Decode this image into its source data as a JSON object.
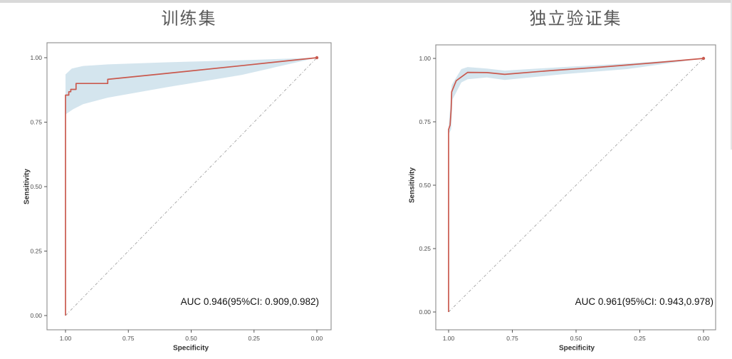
{
  "page": {
    "background": "#ffffff",
    "top_strip_color": "#d9d9d9",
    "right_strip_color": "#e4e4e4"
  },
  "colors": {
    "roc_curve": "#c9594e",
    "ci_band": "#cfe2ec",
    "diagonal": "#a3a3a3",
    "panel_border": "#8c8c8c",
    "tick_mark": "#555555",
    "tick_label": "#4d4d4d",
    "axis_label": "#303030",
    "title": "#595959",
    "auc_text": "#111111"
  },
  "chart_data": [
    {
      "type": "line",
      "chart_kind": "roc-curve",
      "title": "训练集",
      "xlabel": "Specificity",
      "ylabel": "Sensitivity",
      "x_reversed": true,
      "xlim": [
        1.0,
        0.0
      ],
      "ylim": [
        0.0,
        1.0
      ],
      "grid": false,
      "legend": false,
      "diagonal_reference": true,
      "xticks": [
        {
          "v": 1.0,
          "label": "1.00"
        },
        {
          "v": 0.75,
          "label": "0.75"
        },
        {
          "v": 0.5,
          "label": "0.50"
        },
        {
          "v": 0.25,
          "label": "0.25"
        },
        {
          "v": 0.0,
          "label": "0.00"
        }
      ],
      "yticks": [
        {
          "v": 0.0,
          "label": "0.00"
        },
        {
          "v": 0.25,
          "label": "0.25"
        },
        {
          "v": 0.5,
          "label": "0.50"
        },
        {
          "v": 0.75,
          "label": "0.75"
        },
        {
          "v": 1.0,
          "label": "1.00"
        }
      ],
      "auc": 0.946,
      "ci95": [
        0.909,
        0.982
      ],
      "auc_label": "AUC 0.946(95%CI: 0.909,0.982)",
      "series": [
        {
          "name": "ROC curve (specificity, sensitivity)",
          "points": [
            [
              1.0,
              0.0
            ],
            [
              1.0,
              0.855
            ],
            [
              0.987,
              0.855
            ],
            [
              0.987,
              0.868
            ],
            [
              0.979,
              0.868
            ],
            [
              0.979,
              0.877
            ],
            [
              0.958,
              0.877
            ],
            [
              0.958,
              0.9
            ],
            [
              0.832,
              0.9
            ],
            [
              0.832,
              0.916
            ],
            [
              0.6,
              0.939
            ],
            [
              0.3,
              0.969
            ],
            [
              0.0,
              1.0
            ]
          ]
        },
        {
          "name": "95% CI upper bound",
          "points": [
            [
              1.0,
              0.935
            ],
            [
              0.975,
              0.958
            ],
            [
              0.93,
              0.968
            ],
            [
              0.832,
              0.974
            ],
            [
              0.6,
              0.982
            ],
            [
              0.3,
              0.99
            ],
            [
              0.0,
              1.0
            ]
          ]
        },
        {
          "name": "95% CI lower bound",
          "points": [
            [
              1.0,
              0.78
            ],
            [
              0.97,
              0.8
            ],
            [
              0.93,
              0.82
            ],
            [
              0.832,
              0.845
            ],
            [
              0.6,
              0.885
            ],
            [
              0.3,
              0.933
            ],
            [
              0.0,
              1.0
            ]
          ]
        }
      ]
    },
    {
      "type": "line",
      "chart_kind": "roc-curve",
      "title": "独立验证集",
      "xlabel": "Specificity",
      "ylabel": "Sensitivity",
      "x_reversed": true,
      "xlim": [
        1.0,
        0.0
      ],
      "ylim": [
        0.0,
        1.0
      ],
      "grid": false,
      "legend": false,
      "diagonal_reference": true,
      "xticks": [
        {
          "v": 1.0,
          "label": "1.00"
        },
        {
          "v": 0.75,
          "label": "0.75"
        },
        {
          "v": 0.5,
          "label": "0.50"
        },
        {
          "v": 0.25,
          "label": "0.25"
        },
        {
          "v": 0.0,
          "label": "0.00"
        }
      ],
      "yticks": [
        {
          "v": 0.0,
          "label": "0.00"
        },
        {
          "v": 0.25,
          "label": "0.25"
        },
        {
          "v": 0.5,
          "label": "0.50"
        },
        {
          "v": 0.75,
          "label": "0.75"
        },
        {
          "v": 1.0,
          "label": "1.00"
        }
      ],
      "auc": 0.961,
      "ci95": [
        0.943,
        0.978
      ],
      "auc_label": "AUC 0.961(95%CI: 0.943,0.978)",
      "series": [
        {
          "name": "ROC curve (specificity, sensitivity)",
          "points": [
            [
              1.0,
              0.0
            ],
            [
              1.0,
              0.72
            ],
            [
              0.994,
              0.737
            ],
            [
              0.99,
              0.8
            ],
            [
              0.988,
              0.868
            ],
            [
              0.97,
              0.912
            ],
            [
              0.925,
              0.945
            ],
            [
              0.85,
              0.944
            ],
            [
              0.78,
              0.937
            ],
            [
              0.6,
              0.952
            ],
            [
              0.4,
              0.966
            ],
            [
              0.2,
              0.982
            ],
            [
              0.0,
              1.0
            ]
          ]
        },
        {
          "name": "95% CI upper bound",
          "points": [
            [
              1.0,
              0.73
            ],
            [
              0.995,
              0.79
            ],
            [
              0.988,
              0.895
            ],
            [
              0.95,
              0.958
            ],
            [
              0.925,
              0.966
            ],
            [
              0.85,
              0.96
            ],
            [
              0.78,
              0.952
            ],
            [
              0.55,
              0.966
            ],
            [
              0.3,
              0.98
            ],
            [
              0.0,
              1.0
            ]
          ]
        },
        {
          "name": "95% CI lower bound",
          "points": [
            [
              1.0,
              0.7
            ],
            [
              0.99,
              0.72
            ],
            [
              0.985,
              0.838
            ],
            [
              0.95,
              0.905
            ],
            [
              0.925,
              0.918
            ],
            [
              0.85,
              0.925
            ],
            [
              0.78,
              0.915
            ],
            [
              0.55,
              0.938
            ],
            [
              0.3,
              0.958
            ],
            [
              0.0,
              1.0
            ]
          ]
        }
      ]
    }
  ]
}
